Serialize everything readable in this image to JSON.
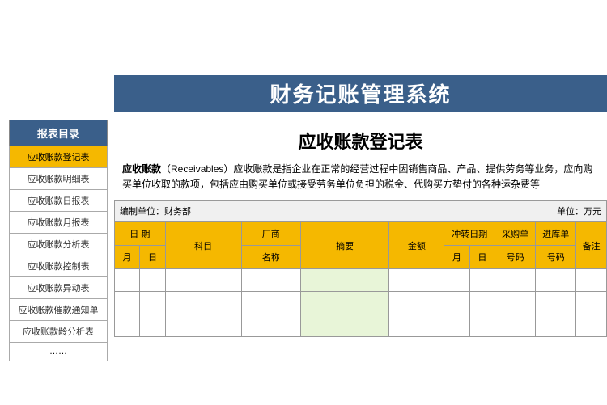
{
  "header": {
    "title": "财务记账管理系统"
  },
  "sidebar": {
    "header": "报表目录",
    "items": [
      {
        "label": "应收账款登记表",
        "active": true
      },
      {
        "label": "应收账款明细表",
        "active": false
      },
      {
        "label": "应收账款日报表",
        "active": false
      },
      {
        "label": "应收账款月报表",
        "active": false
      },
      {
        "label": "应收账款分析表",
        "active": false
      },
      {
        "label": "应收账款控制表",
        "active": false
      },
      {
        "label": "应收账款异动表",
        "active": false
      },
      {
        "label": "应收账款催款通知单",
        "active": false
      },
      {
        "label": "应收账款龄分析表",
        "active": false
      }
    ],
    "ellipsis": "……"
  },
  "main": {
    "title": "应收账款登记表",
    "desc_bold": "应收账款",
    "desc_text": "（Receivables）应收账款是指企业在正常的经营过程中因销售商品、产品、提供劳务等业务，应向购买单位收取的款项，包括应由购买单位或接受劳务单位负担的税金、代购买方垫付的各种运杂费等",
    "info_left": "编制单位：财务部",
    "info_right": "单位：万元",
    "headers": {
      "date": "日 期",
      "month": "月",
      "day": "日",
      "subject": "科目",
      "vendor": "厂商",
      "vendor_name": "名称",
      "summary": "摘要",
      "amount": "金额",
      "offset_date": "冲转日期",
      "purchase_code": "采购单",
      "warehouse_code": "进库单",
      "code": "号码",
      "remark": "备注"
    }
  },
  "colors": {
    "header_bg": "#3a5f8a",
    "accent_bg": "#f5b800",
    "highlight_bg": "#e8f5d8",
    "border": "#999999"
  }
}
